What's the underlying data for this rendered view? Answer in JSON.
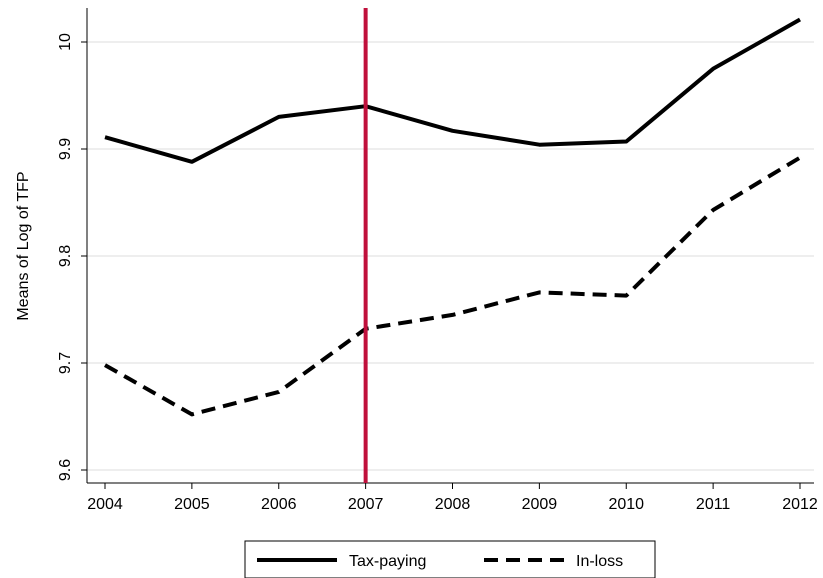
{
  "chart_data": {
    "type": "line",
    "title": "",
    "xlabel": "",
    "ylabel": "Means of Log of TFP",
    "x": [
      2004,
      2005,
      2006,
      2007,
      2008,
      2009,
      2010,
      2011,
      2012
    ],
    "x_ticks": [
      "2004",
      "2005",
      "2006",
      "2007",
      "2008",
      "2009",
      "2010",
      "2011",
      "2012"
    ],
    "y_ticks": [
      "9.6",
      "9.7",
      "9.8",
      "9.9",
      "10"
    ],
    "y_tick_values": [
      9.6,
      9.7,
      9.8,
      9.9,
      10.0
    ],
    "ylim": [
      9.59,
      10.23
    ],
    "xlim": [
      2004,
      2012
    ],
    "grid": "horizontal",
    "legend_position": "bottom",
    "series": [
      {
        "name": "Tax-paying",
        "style": "solid",
        "color": "#000000",
        "values": [
          9.911,
          9.888,
          9.93,
          9.94,
          9.917,
          9.904,
          9.907,
          9.975,
          10.021
        ]
      },
      {
        "name": "In-loss",
        "style": "dashed",
        "color": "#000000",
        "values": [
          9.698,
          9.652,
          9.673,
          9.732,
          9.745,
          9.766,
          9.763,
          9.843,
          9.892
        ]
      }
    ],
    "reference_line": {
      "x": 2007,
      "color": "#c0103c"
    }
  }
}
